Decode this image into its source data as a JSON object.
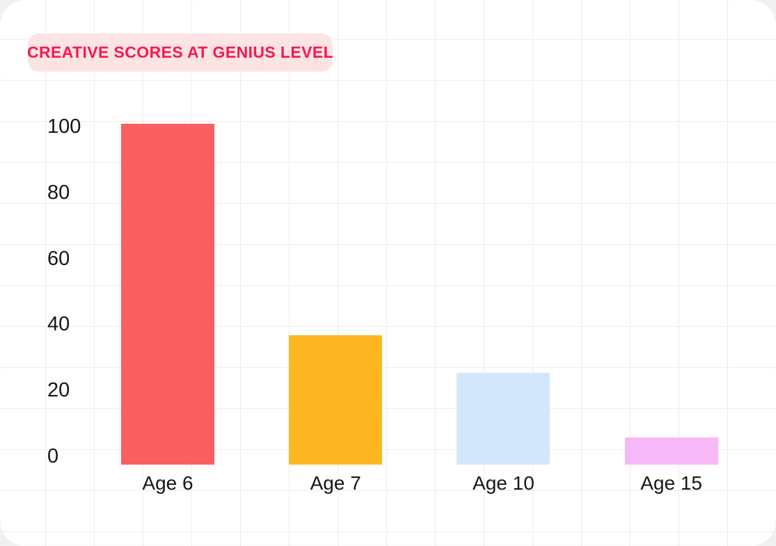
{
  "title": {
    "label": "CREATIVE SCORES AT GENIUS LEVEL",
    "text_color": "#f8184f",
    "badge_color": "#fbe4e2"
  },
  "chart_data": {
    "type": "bar",
    "title": "CREATIVE SCORES AT GENIUS LEVEL",
    "categories": [
      "Age 6",
      "Age 7",
      "Age 10",
      "Age 15"
    ],
    "values": [
      100,
      38,
      27,
      8
    ],
    "bar_colors": [
      "#fc5f5f",
      "#fdb722",
      "#d3e8fb",
      "#f6b8f6"
    ],
    "yticks": [
      0,
      20,
      40,
      60,
      80,
      100
    ],
    "ylim": [
      0,
      100
    ],
    "xlabel": "",
    "ylabel": "",
    "legend": "none",
    "grid": "decorative pink paper grid",
    "grid_color": "#f9e6ea",
    "background_color": "#ffffff"
  }
}
